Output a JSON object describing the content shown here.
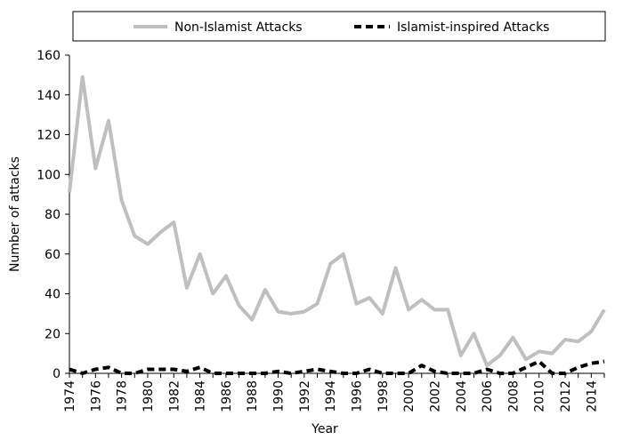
{
  "chart_data": {
    "type": "line",
    "title": "",
    "xlabel": "Year",
    "ylabel": "Number of attacks",
    "ylim": [
      0,
      160
    ],
    "y_ticks": [
      0,
      20,
      40,
      60,
      80,
      100,
      120,
      140,
      160
    ],
    "x_range": [
      1974,
      2015
    ],
    "x_tick_labels": [
      "1974",
      "1976",
      "1978",
      "1980",
      "1982",
      "1984",
      "1986",
      "1988",
      "1990",
      "1992",
      "1994",
      "1996",
      "1998",
      "2000",
      "2002",
      "2004",
      "2006",
      "2008",
      "2010",
      "2012",
      "2014"
    ],
    "grid": false,
    "legend_position": "top",
    "x": [
      1974,
      1975,
      1976,
      1977,
      1978,
      1979,
      1980,
      1981,
      1982,
      1983,
      1984,
      1985,
      1986,
      1987,
      1988,
      1989,
      1990,
      1991,
      1992,
      1993,
      1994,
      1995,
      1996,
      1997,
      1998,
      1999,
      2000,
      2001,
      2002,
      2003,
      2004,
      2005,
      2006,
      2007,
      2008,
      2009,
      2010,
      2011,
      2012,
      2013,
      2014,
      2015
    ],
    "series": [
      {
        "name": "Non-Islamist Attacks",
        "color": "#bfbfbf",
        "style": "solid",
        "values": [
          91,
          149,
          103,
          127,
          87,
          69,
          65,
          71,
          76,
          43,
          60,
          40,
          49,
          34,
          27,
          42,
          31,
          30,
          31,
          35,
          55,
          60,
          35,
          38,
          30,
          53,
          32,
          37,
          32,
          32,
          9,
          20,
          4,
          9,
          18,
          7,
          11,
          10,
          17,
          16,
          21,
          32
        ]
      },
      {
        "name": "Islamist-inspired Attacks",
        "color": "#000000",
        "style": "dashed",
        "values": [
          2,
          0,
          2,
          3,
          0,
          0,
          2,
          2,
          2,
          1,
          3,
          0,
          0,
          0,
          0,
          0,
          1,
          0,
          1,
          2,
          1,
          0,
          0,
          2,
          0,
          0,
          0,
          4,
          1,
          0,
          0,
          0,
          2,
          0,
          0,
          3,
          6,
          0,
          0,
          3,
          5,
          6
        ]
      }
    ]
  }
}
